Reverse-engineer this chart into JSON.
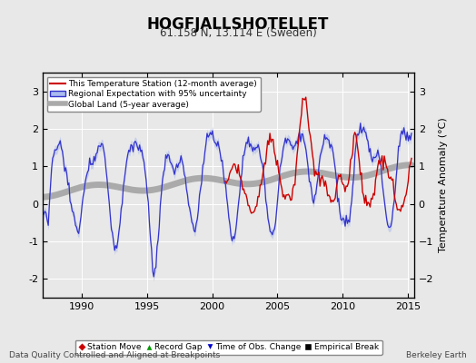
{
  "title": "HOGFJALLSHOTELLET",
  "subtitle": "61.158 N, 13.114 E (Sweden)",
  "ylabel": "Temperature Anomaly (°C)",
  "xlabel_left": "Data Quality Controlled and Aligned at Breakpoints",
  "xlabel_right": "Berkeley Earth",
  "ylim": [
    -2.5,
    3.5
  ],
  "xlim": [
    1987.0,
    2015.5
  ],
  "yticks": [
    -2,
    -1,
    0,
    1,
    2,
    3
  ],
  "xticks": [
    1990,
    1995,
    2000,
    2005,
    2010,
    2015
  ],
  "bg_color": "#e8e8e8",
  "plot_bg_color": "#e8e8e8",
  "grid_color": "#ffffff",
  "station_color": "#cc0000",
  "regional_color": "#3333cc",
  "regional_fill": "#aabbee",
  "global_color": "#aaaaaa",
  "legend_items": [
    {
      "label": "This Temperature Station (12-month average)",
      "color": "#cc0000",
      "lw": 1.5
    },
    {
      "label": "Regional Expectation with 95% uncertainty",
      "color": "#3333cc",
      "lw": 1.5
    },
    {
      "label": "Global Land (5-year average)",
      "color": "#aaaaaa",
      "lw": 4
    }
  ],
  "marker_legend": [
    {
      "label": "Station Move",
      "marker": "D",
      "color": "#cc0000"
    },
    {
      "label": "Record Gap",
      "marker": "^",
      "color": "#009900"
    },
    {
      "label": "Time of Obs. Change",
      "marker": "v",
      "color": "#0000cc"
    },
    {
      "label": "Empirical Break",
      "marker": "s",
      "color": "#000000"
    }
  ]
}
